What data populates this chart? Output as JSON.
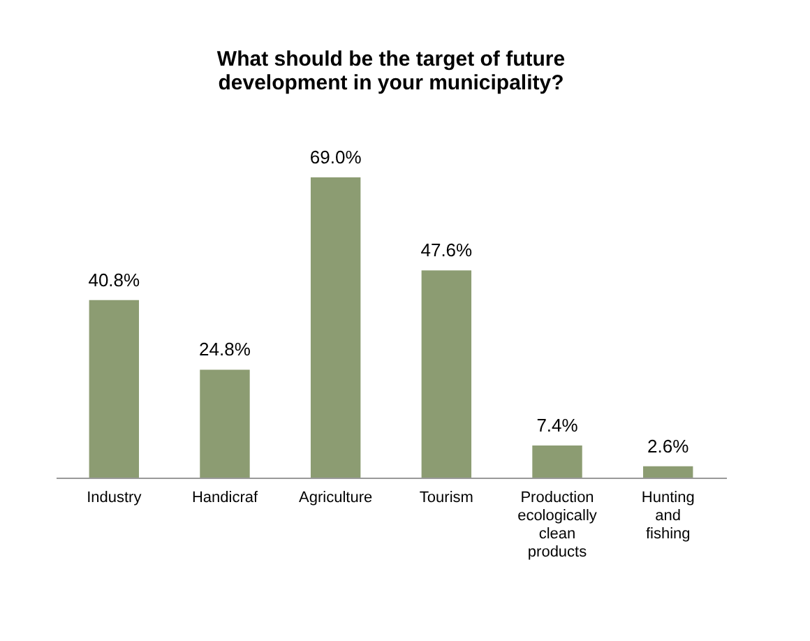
{
  "chart_data": {
    "type": "bar",
    "title": "What should be the target of future development in your municipality?",
    "categories": [
      "Industry",
      "Handicraf",
      "Agriculture",
      "Tourism",
      "Production ecologically clean products",
      "Hunting and fishing"
    ],
    "values": [
      40.8,
      24.8,
      69.0,
      47.6,
      7.4,
      2.6
    ],
    "value_labels": [
      "40.8%",
      "24.8%",
      "69.0%",
      "47.6%",
      "7.4%",
      "2.6%"
    ],
    "color": "#8c9c72",
    "grid": false
  }
}
